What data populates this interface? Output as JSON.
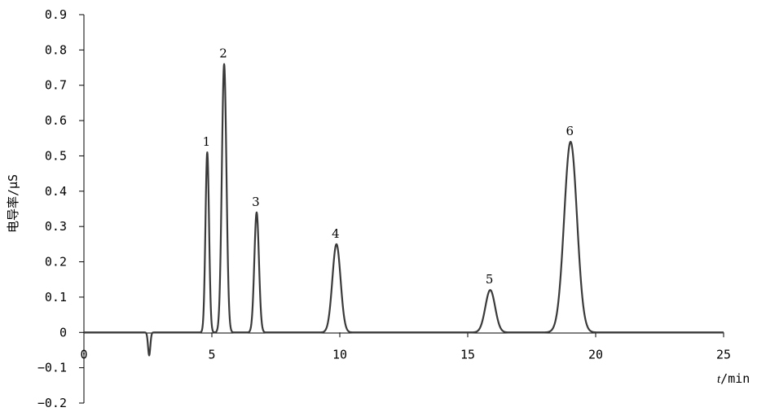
{
  "chart_data": {
    "type": "line",
    "xlabel_italic": "t",
    "xlabel_unit": "/min",
    "ylabel": "电导率/μS",
    "xlim": [
      0,
      25
    ],
    "ylim": [
      -0.2,
      0.9
    ],
    "grid": false,
    "x_ticks": [
      0,
      5,
      10,
      15,
      20,
      25
    ],
    "x_tick_labels": [
      "0",
      "5",
      "10",
      "15",
      "20",
      "25"
    ],
    "y_ticks": [
      -0.2,
      -0.1,
      0,
      0.1,
      0.2,
      0.3,
      0.4,
      0.5,
      0.6,
      0.7,
      0.8,
      0.9
    ],
    "y_tick_labels": [
      "-0.2",
      "-0.1",
      "0",
      "0.1",
      "0.2",
      "0.3",
      "0.4",
      "0.5",
      "0.6",
      "0.7",
      "0.8",
      "0.9"
    ],
    "dip": {
      "center": 2.55,
      "depth": -0.065,
      "width": 0.045
    },
    "peaks": [
      {
        "label": "1",
        "retention_time": 4.82,
        "height": 0.51,
        "width": 0.07
      },
      {
        "label": "2",
        "retention_time": 5.48,
        "height": 0.76,
        "width": 0.09
      },
      {
        "label": "3",
        "retention_time": 6.75,
        "height": 0.34,
        "width": 0.09
      },
      {
        "label": "4",
        "retention_time": 9.87,
        "height": 0.25,
        "width": 0.16
      },
      {
        "label": "5",
        "retention_time": 15.88,
        "height": 0.12,
        "width": 0.19
      },
      {
        "label": "6",
        "retention_time": 19.02,
        "height": 0.54,
        "width": 0.25
      }
    ]
  }
}
